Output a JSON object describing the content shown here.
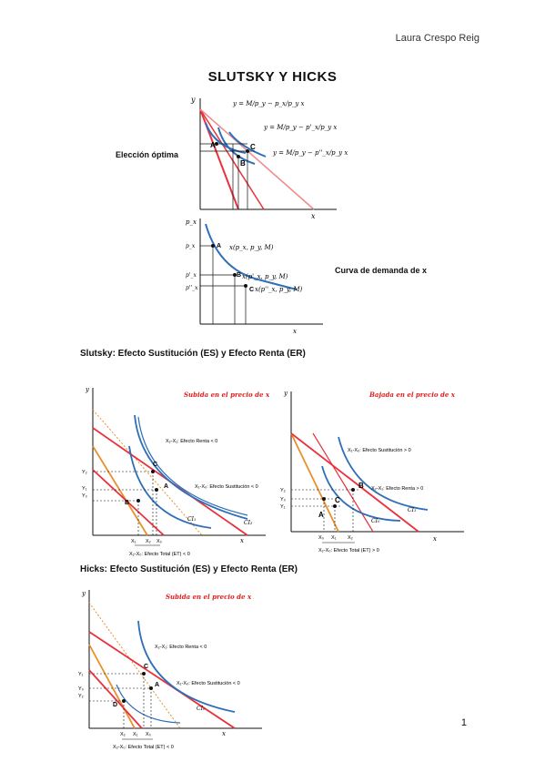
{
  "header": {
    "author": "Laura Crespo Reig"
  },
  "title": "SLUTSKY Y HICKS",
  "fig1": {
    "label_choice": "Elección óptima",
    "axis_y": "y",
    "axis_x": "x",
    "budget_eq_1": "y = M/p_y − p_x/p_y x",
    "budget_eq_2": "y = M/p_y − p'_x/p_y x",
    "budget_eq_3": "y = M/p_y − p''_x/p_y x",
    "points": [
      "A",
      "B",
      "C"
    ]
  },
  "fig2": {
    "label_demand": "Curva de demanda de x",
    "axis_y": "p_x",
    "axis_x": "x",
    "price_ticks": [
      "p_x",
      "p'_x",
      "p''_x"
    ],
    "demand_A": "x(p_x, p_y, M)",
    "demand_B": "x(p'_x, p_y, M)",
    "demand_C": "x(p''_x, p_y, M)",
    "points": [
      "A",
      "B",
      "C"
    ]
  },
  "section_slutsky": "Slutsky: Efecto Sustitución (ES) y Efecto Renta (ER)",
  "fig3": {
    "title": "Subida en el precio de x",
    "er": "X₂-X₁: Efecto Renta < 0",
    "es": "X₁-X₀: Efecto Sustitución < 0",
    "et": "X₂-X₀: Efecto Total (ET) < 0",
    "ticks_x": [
      "X₁",
      "X₂",
      "X₀"
    ],
    "ticks_y": [
      "Y₀",
      "Y₁",
      "Y₂"
    ],
    "curves": [
      "CI₁",
      "CI₂"
    ],
    "points": [
      "A",
      "B",
      "C"
    ]
  },
  "fig4": {
    "title": "Bajada en el precio de x",
    "es": "X₁-X₀: Efecto Sustitución > 0",
    "er": "X₂-X₁: Efecto Renta > 0",
    "et": "X₂-X₀: Efecto Total (ET) > 0",
    "ticks_x": [
      "X₀",
      "X₁",
      "X₂"
    ],
    "ticks_y": [
      "Y₂",
      "Y₀",
      "Y₁"
    ],
    "curves": [
      "CI₀",
      "CI₁"
    ],
    "points": [
      "A",
      "B",
      "C"
    ]
  },
  "section_hicks": "Hicks: Efecto Sustitución (ES) y Efecto Renta (ER)",
  "fig5": {
    "title": "Subida en el precio de x",
    "er": "X₂-X₁: Efecto Renta < 0",
    "es": "X₁-X₀: Efecto Sustitución < 0",
    "et": "X₂-X₀: Efecto Total (ET) < 0",
    "ticks_x": [
      "X₂",
      "X₁",
      "X₀"
    ],
    "ticks_y": [
      "Y₁",
      "Y₀",
      "Y₂"
    ],
    "curves": [
      "CI₀"
    ],
    "points": [
      "A",
      "C",
      "D"
    ]
  },
  "footer": {
    "page_number": "1"
  },
  "colors": {
    "red": "#e8323c",
    "orange": "#e8902a",
    "blue": "#2f6fb8",
    "title_red": "#e02020"
  }
}
